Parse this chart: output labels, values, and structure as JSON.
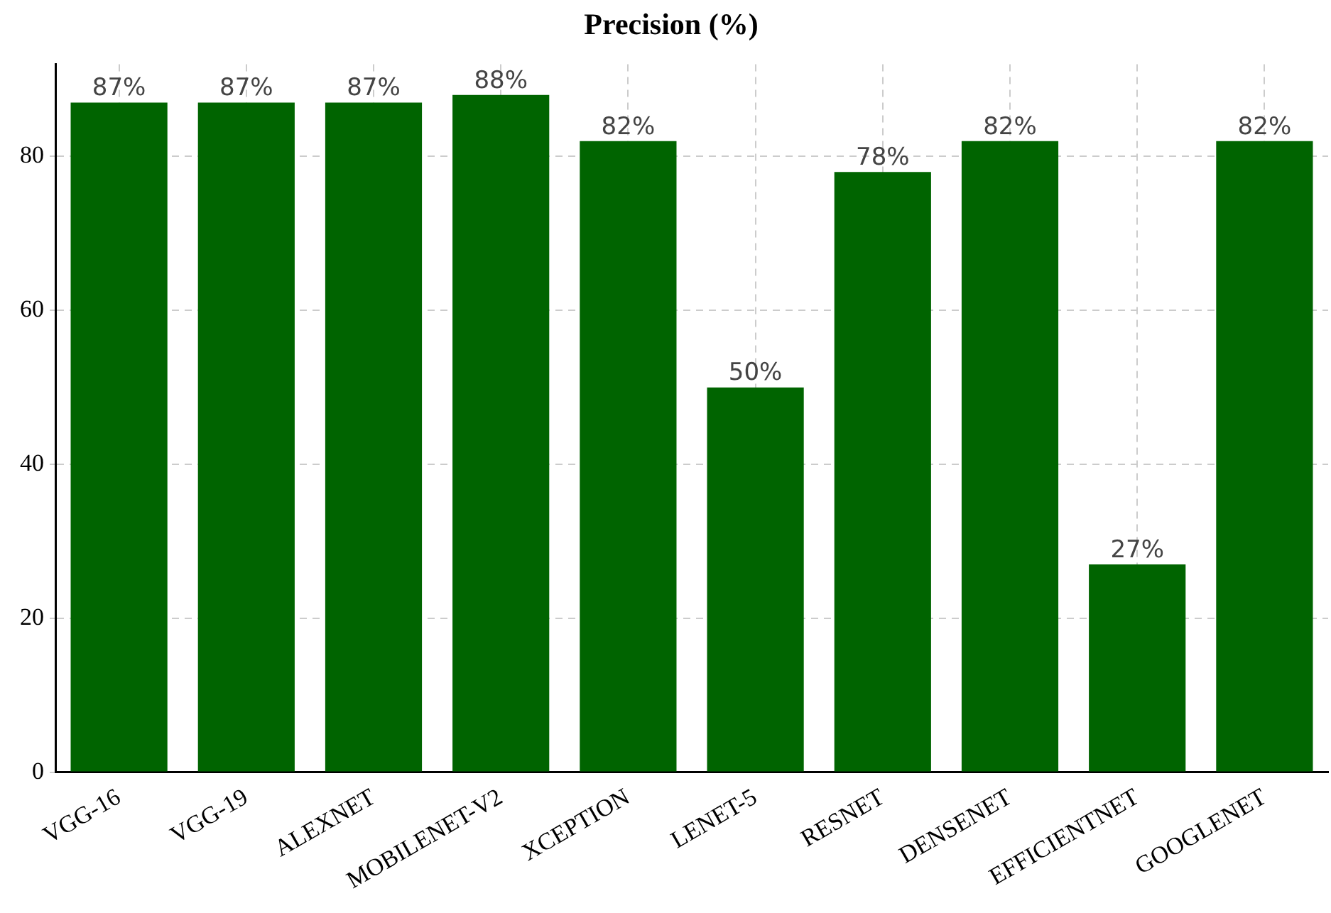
{
  "chart_data": {
    "type": "bar",
    "title": "Precision (%)",
    "categories": [
      "VGG-16",
      "VGG-19",
      "ALEXNET",
      "MOBILENET-V2",
      "XCEPTION",
      "LENET-5",
      "RESNET",
      "DENSENET",
      "EFFICIENTNET",
      "GOOGLENET"
    ],
    "values": [
      87,
      87,
      87,
      88,
      82,
      50,
      78,
      82,
      27,
      82
    ],
    "value_labels": [
      "87%",
      "87%",
      "87%",
      "88%",
      "82%",
      "50%",
      "78%",
      "82%",
      "27%",
      "82%"
    ],
    "color": "#006400",
    "ylim": [
      0,
      92
    ],
    "yticks": [
      0,
      20,
      40,
      60,
      80
    ],
    "grid": true,
    "legend": false
  }
}
